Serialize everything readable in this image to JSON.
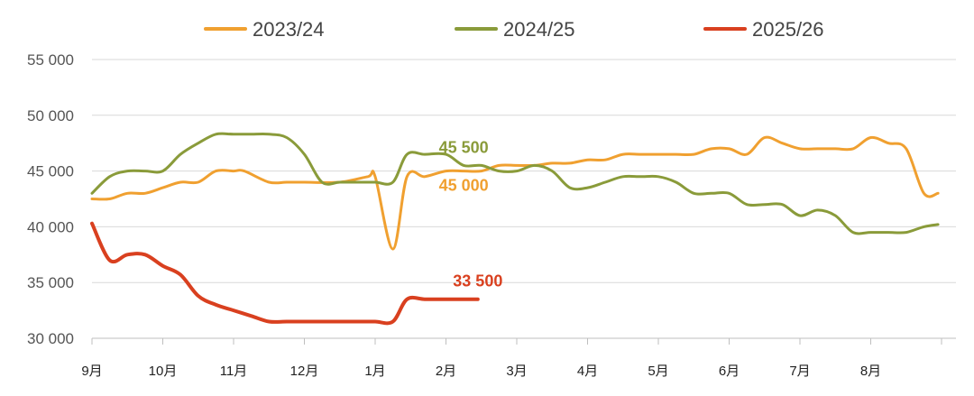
{
  "chart_data": {
    "type": "line",
    "title": "",
    "xlabel": "",
    "ylabel": "",
    "ylim": [
      30000,
      55000
    ],
    "yticks": [
      30000,
      35000,
      40000,
      45000,
      50000,
      55000
    ],
    "ytick_labels": [
      "30 000",
      "35 000",
      "40 000",
      "45 000",
      "50 000",
      "55 000"
    ],
    "categories": [
      "9月",
      "10月",
      "11月",
      "12月",
      "1月",
      "2月",
      "3月",
      "4月",
      "5月",
      "6月",
      "7月",
      "8月"
    ],
    "grid": "horizontal",
    "legend_position": "top",
    "series": [
      {
        "name": "2023/24",
        "color": "#F0A030",
        "x": [
          0.0,
          0.25,
          0.5,
          0.75,
          1.0,
          1.25,
          1.5,
          1.75,
          2.0,
          2.15,
          2.5,
          2.75,
          3.0,
          3.5,
          3.9,
          4.0,
          4.25,
          4.45,
          4.7,
          5.0,
          5.25,
          5.5,
          5.75,
          6.0,
          6.25,
          6.5,
          6.75,
          7.0,
          7.25,
          7.5,
          7.75,
          8.0,
          8.25,
          8.5,
          8.75,
          9.0,
          9.25,
          9.5,
          9.75,
          10.0,
          10.25,
          10.5,
          10.75,
          11.0,
          11.25,
          11.5,
          11.75,
          11.95
        ],
        "values": [
          42500,
          42500,
          43000,
          43000,
          43500,
          44000,
          44000,
          45000,
          45000,
          45000,
          44000,
          44000,
          44000,
          44000,
          44500,
          44500,
          38000,
          44500,
          44500,
          45000,
          45000,
          45000,
          45500,
          45500,
          45500,
          45700,
          45700,
          46000,
          46000,
          46500,
          46500,
          46500,
          46500,
          46500,
          47000,
          47000,
          46500,
          48000,
          47500,
          47000,
          47000,
          47000,
          47000,
          48000,
          47500,
          47000,
          43000,
          43000
        ]
      },
      {
        "name": "2024/25",
        "color": "#8A9B3A",
        "x": [
          0.0,
          0.25,
          0.5,
          0.75,
          1.0,
          1.25,
          1.5,
          1.75,
          2.0,
          2.25,
          2.5,
          2.75,
          3.0,
          3.25,
          3.5,
          3.75,
          4.0,
          4.25,
          4.45,
          4.7,
          5.0,
          5.25,
          5.5,
          5.75,
          6.0,
          6.25,
          6.5,
          6.75,
          7.0,
          7.25,
          7.5,
          7.75,
          8.0,
          8.25,
          8.5,
          8.75,
          9.0,
          9.25,
          9.5,
          9.75,
          10.0,
          10.25,
          10.5,
          10.75,
          11.0,
          11.25,
          11.5,
          11.75,
          11.95
        ],
        "values": [
          43000,
          44500,
          45000,
          45000,
          45000,
          46500,
          47500,
          48300,
          48300,
          48300,
          48300,
          48000,
          46500,
          44000,
          44000,
          44000,
          44000,
          44000,
          46500,
          46500,
          46500,
          45500,
          45500,
          45000,
          45000,
          45500,
          45000,
          43500,
          43500,
          44000,
          44500,
          44500,
          44500,
          44000,
          43000,
          43000,
          43000,
          42000,
          42000,
          42000,
          41000,
          41500,
          41000,
          39500,
          39500,
          39500,
          39500,
          40000,
          40200
        ]
      },
      {
        "name": "2025/26",
        "color": "#D9401F",
        "x": [
          0.0,
          0.25,
          0.5,
          0.75,
          1.0,
          1.25,
          1.5,
          1.75,
          2.0,
          2.25,
          2.5,
          2.75,
          3.0,
          3.25,
          3.5,
          3.75,
          4.0,
          4.25,
          4.45,
          4.7,
          5.0,
          5.25,
          5.45
        ],
        "values": [
          40300,
          37000,
          37500,
          37500,
          36500,
          35700,
          33800,
          33000,
          32500,
          32000,
          31500,
          31500,
          31500,
          31500,
          31500,
          31500,
          31500,
          31500,
          33500,
          33500,
          33500,
          33500,
          33500
        ]
      }
    ],
    "annotations": [
      {
        "text": "45 500",
        "series": "2024/25",
        "x": 5.25,
        "y": 45500
      },
      {
        "text": "45 000",
        "series": "2023/24",
        "x": 5.25,
        "y": 45000
      },
      {
        "text": "33 500",
        "series": "2025/26",
        "x": 5.45,
        "y": 33500
      }
    ]
  }
}
